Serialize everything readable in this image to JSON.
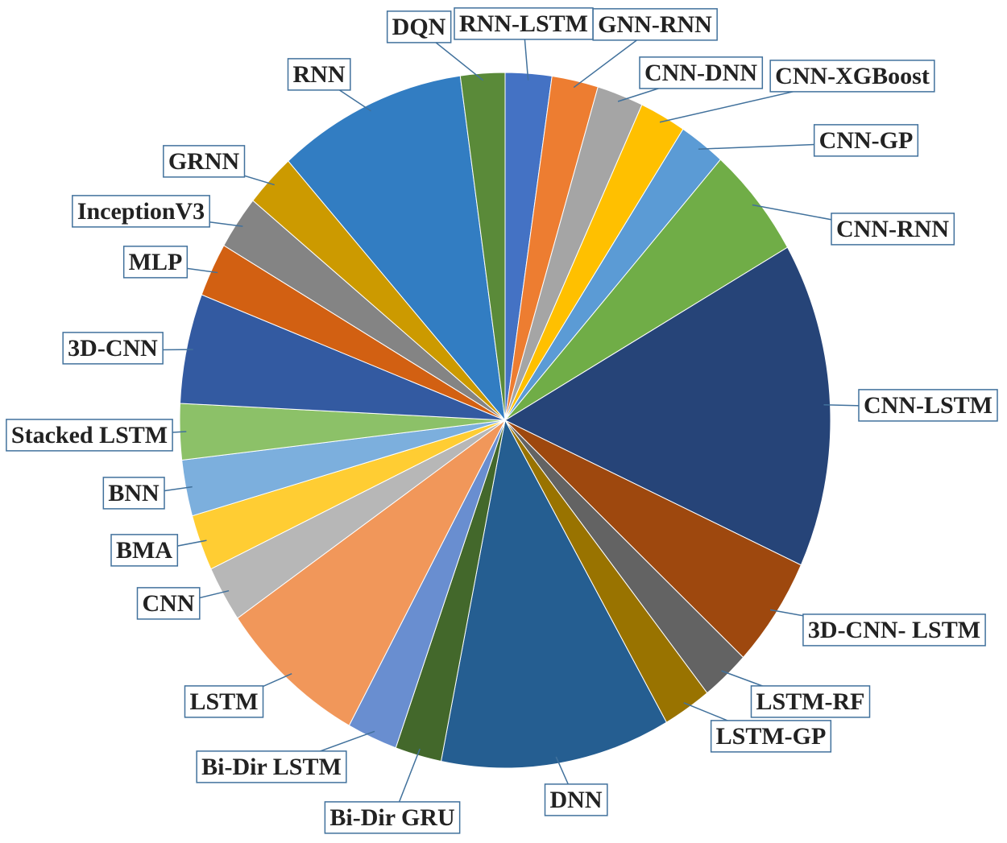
{
  "chart_data": {
    "type": "pie",
    "categories": [
      "RNN-LSTM",
      "GNN-RNN",
      "CNN-DNN",
      "CNN-XGBoost",
      "CNN-GP",
      "CNN-RNN",
      "CNN-LSTM",
      "3D-CNN- LSTM",
      "LSTM-RF",
      "LSTM-GP",
      "DNN",
      "Bi-Dir GRU",
      "Bi-Dir LSTM",
      "LSTM",
      "CNN",
      "BMA",
      "BNN",
      "Stacked LSTM",
      "3D-CNN",
      "MLP",
      "InceptionV3",
      "GRNN",
      "RNN",
      "DQN"
    ],
    "values": [
      2.3,
      2.3,
      2.3,
      2.3,
      2.3,
      5.2,
      15.1,
      5.1,
      2.4,
      2.4,
      11.4,
      2.3,
      2.5,
      7.4,
      2.6,
      2.6,
      2.6,
      2.6,
      5.1,
      2.5,
      2.5,
      2.5,
      9.4,
      2.2
    ],
    "colors": [
      "#4472c4",
      "#ed7d31",
      "#a5a5a5",
      "#ffc000",
      "#5b9bd5",
      "#70ad47",
      "#264478",
      "#9e480e",
      "#636363",
      "#997300",
      "#255e91",
      "#43682b",
      "#698ed0",
      "#f1975a",
      "#b7b7b7",
      "#ffcd33",
      "#7cafdd",
      "#8cc168",
      "#335aa1",
      "#d26012",
      "#848484",
      "#cc9a00",
      "#327dc2",
      "#5a8a39"
    ]
  }
}
